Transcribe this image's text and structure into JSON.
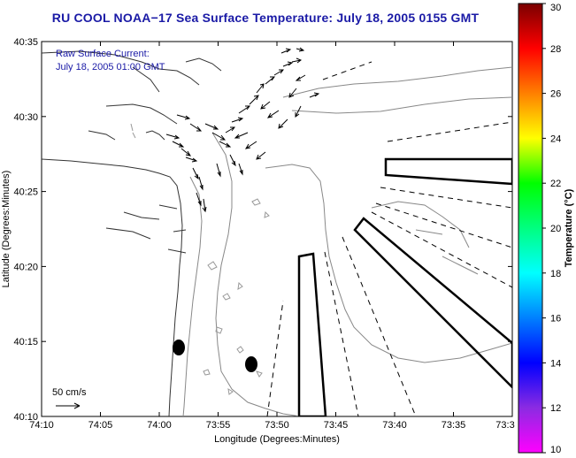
{
  "title": "RU COOL  NOAA−17  Sea Surface Temperature:  July 18, 2005 0155 GMT",
  "annotation": {
    "line1": "Raw Surface Current:",
    "line2": "July 18, 2005 01:00 GMT"
  },
  "scale": {
    "label": "50 cm/s"
  },
  "axes": {
    "xlabel": "Longitude (Degrees:Minutes)",
    "ylabel": "Latitude (Degrees:Minutes)",
    "xticks": [
      "74:10",
      "74:05",
      "74:00",
      "73:55",
      "73:50",
      "73:45",
      "73:40",
      "73:35",
      "73:3"
    ],
    "yticks": [
      "40:35",
      "40:30",
      "40:25",
      "40:20",
      "40:15",
      "40:10"
    ]
  },
  "colorbar": {
    "title": "Temperature (°C)",
    "ticks": [
      "30",
      "28",
      "26",
      "24",
      "22",
      "20",
      "18",
      "16",
      "14",
      "12",
      "10"
    ],
    "colors": [
      "#ff00ff",
      "#8b2be2",
      "#0000ff",
      "#0080ff",
      "#00ffff",
      "#00ff80",
      "#00ff00",
      "#ffff00",
      "#ff8000",
      "#ff0000",
      "#7a0000"
    ]
  }
}
